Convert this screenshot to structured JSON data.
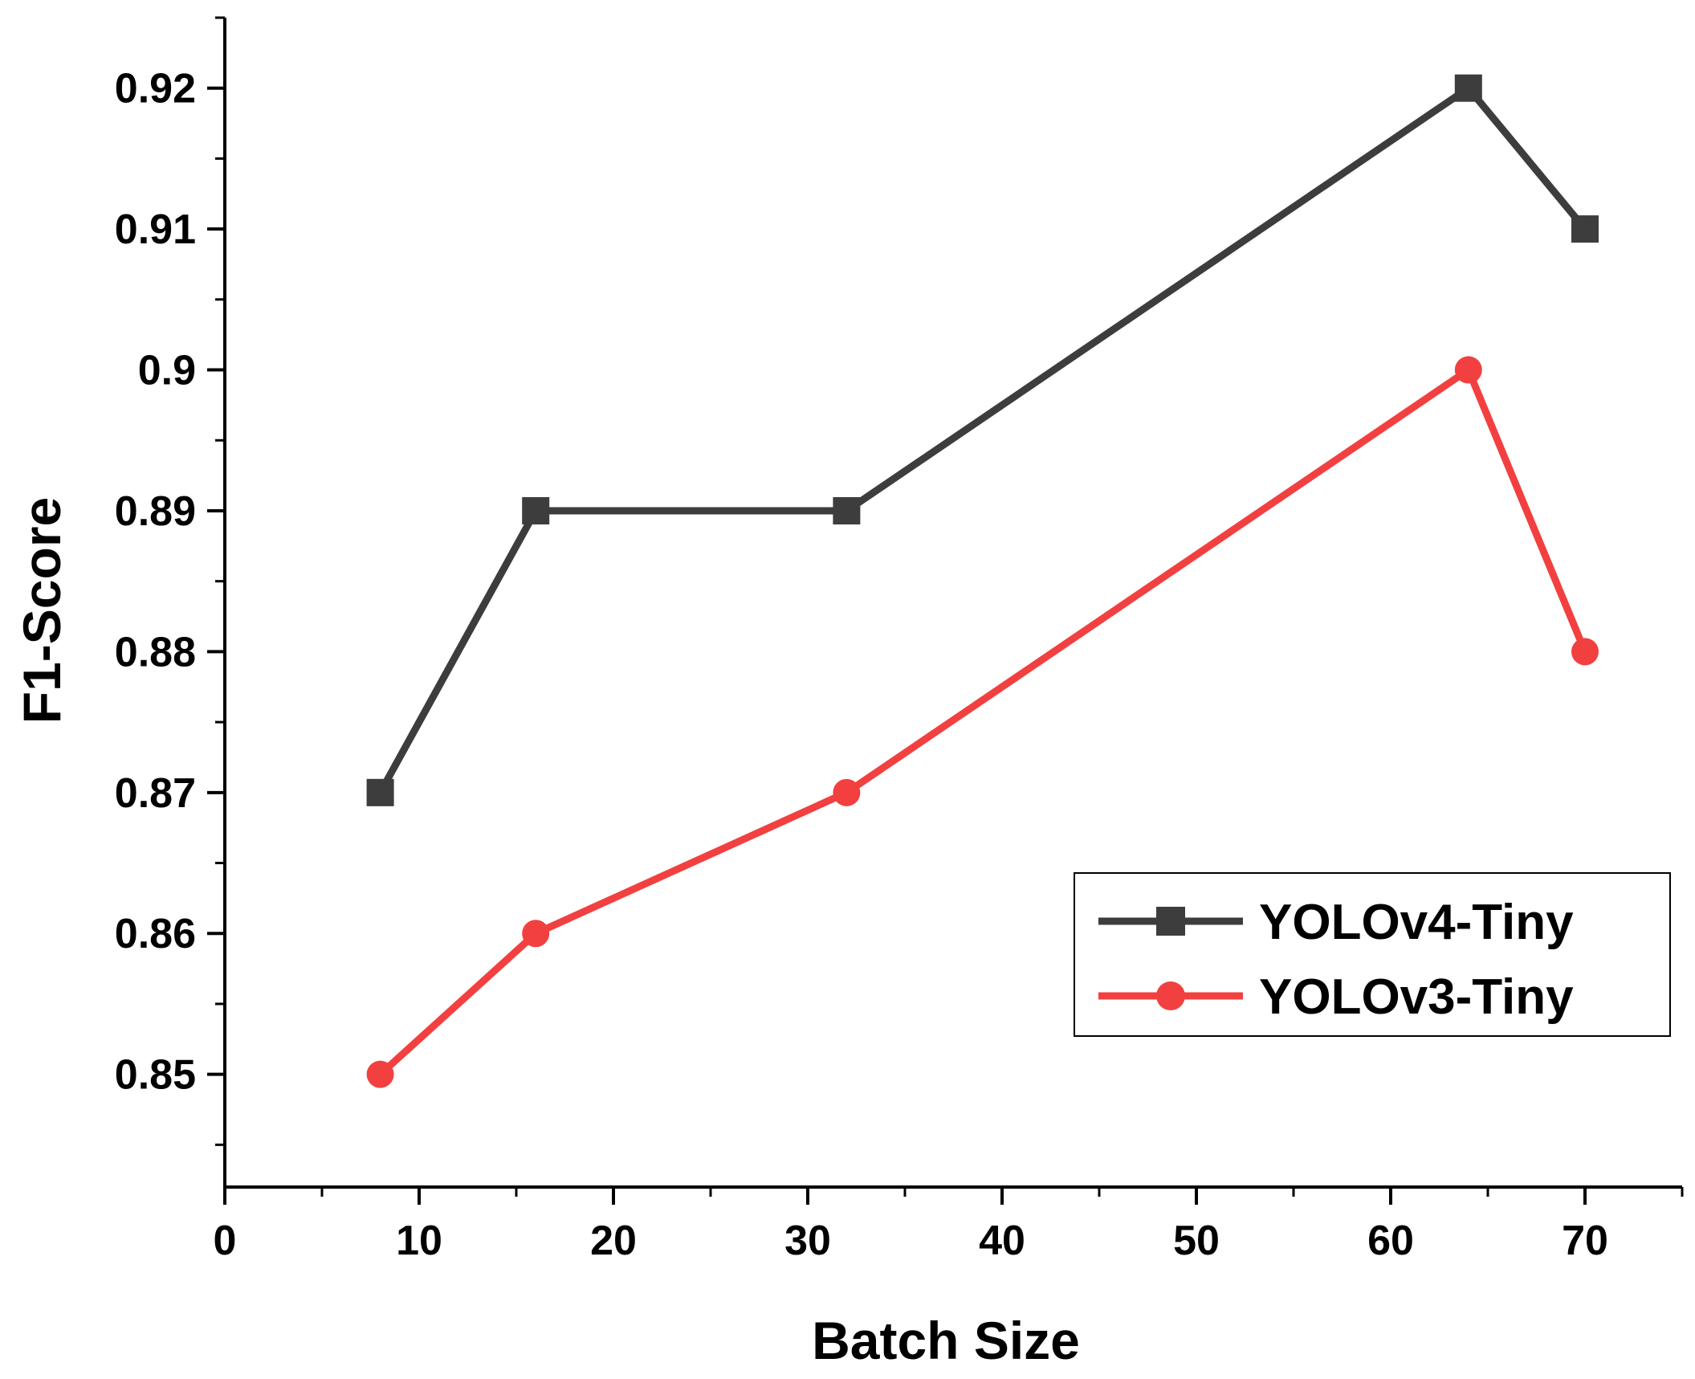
{
  "chart_data": {
    "type": "line",
    "title": "",
    "xlabel": "Batch Size",
    "ylabel": "F1-Score",
    "xlim": [
      0,
      75
    ],
    "ylim": [
      0.842,
      0.925
    ],
    "x_ticks": [
      0,
      10,
      20,
      30,
      40,
      50,
      60,
      70
    ],
    "x_tick_labels": [
      "0",
      "10",
      "20",
      "30",
      "40",
      "50",
      "60",
      "70"
    ],
    "y_ticks": [
      0.85,
      0.86,
      0.87,
      0.88,
      0.89,
      0.9,
      0.91,
      0.92
    ],
    "y_tick_labels": [
      "0.85",
      "0.86",
      "0.87",
      "0.88",
      "0.89",
      "0.9",
      "0.91",
      "0.92"
    ],
    "grid": false,
    "legend_position": "bottom-right",
    "series": [
      {
        "name": "YOLOv4-Tiny",
        "color": "#3d3d3d",
        "marker": "square",
        "x": [
          8,
          16,
          32,
          64,
          70
        ],
        "y": [
          0.87,
          0.89,
          0.89,
          0.92,
          0.91
        ]
      },
      {
        "name": "YOLOv3-Tiny",
        "color": "#f24040",
        "marker": "circle",
        "x": [
          8,
          16,
          32,
          64,
          70
        ],
        "y": [
          0.85,
          0.86,
          0.87,
          0.9,
          0.88
        ]
      }
    ]
  }
}
